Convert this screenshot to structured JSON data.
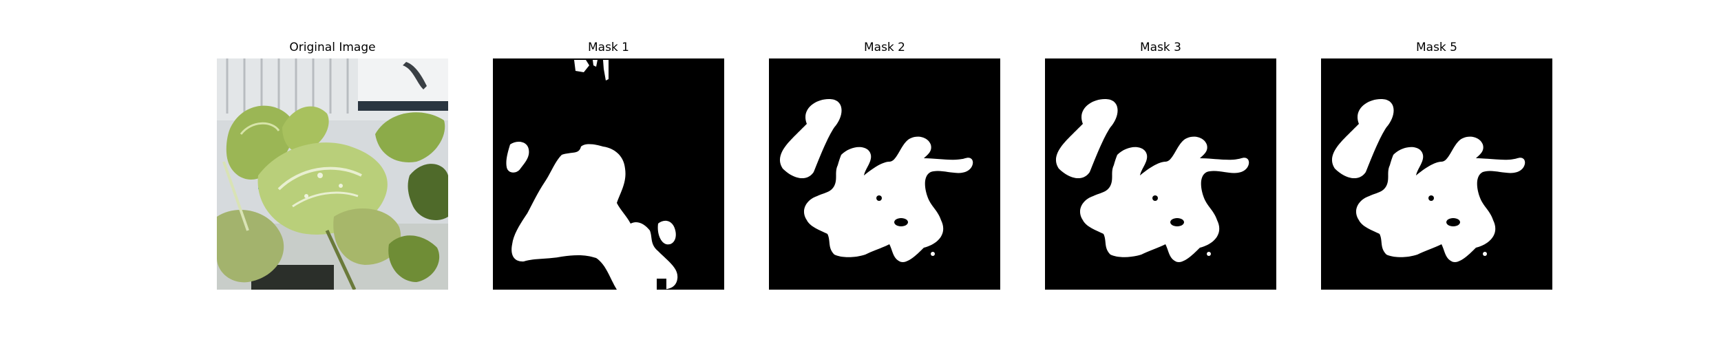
{
  "figure": {
    "panels": [
      {
        "title": "Original Image",
        "kind": "photo"
      },
      {
        "title": "Mask 1",
        "kind": "mask"
      },
      {
        "title": "Mask 2",
        "kind": "mask"
      },
      {
        "title": "Mask 3",
        "kind": "mask"
      },
      {
        "title": "Mask 5",
        "kind": "mask"
      }
    ]
  },
  "colors": {
    "background": "#ffffff",
    "mask_background": "#000000",
    "mask_foreground": "#ffffff",
    "leaf_light": "#b9cf7a",
    "leaf_mid": "#9bb655",
    "leaf_dark": "#4f6a2a",
    "wall": "#d6dadd"
  }
}
